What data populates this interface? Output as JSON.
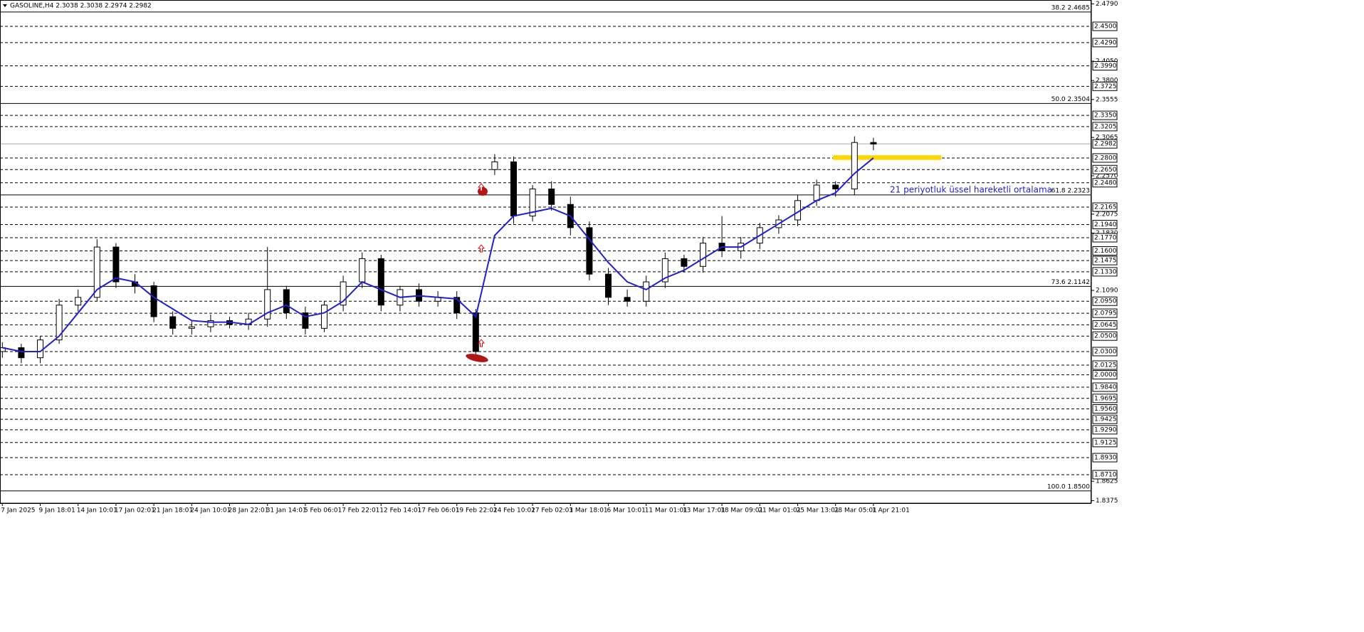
{
  "chart_data": {
    "type": "candlestick",
    "title": "GASOLINE,H4  2.3038 2.3038 2.2974 2.2982",
    "annotation": "21 periyotluk üssel hareketli ortalama",
    "categories": [
      "7 Jan 2025",
      null,
      "9 Jan 18:01",
      null,
      "14 Jan 10:01",
      null,
      "17 Jan 02:01",
      null,
      "21 Jan 18:01",
      null,
      "24 Jan 10:01",
      null,
      "28 Jan 22:01",
      null,
      "31 Jan 14:01",
      null,
      "5 Feb 06:01",
      null,
      "7 Feb 22:01",
      null,
      "12 Feb 14:01",
      null,
      "17 Feb 06:01",
      null,
      "19 Feb 22:01",
      null,
      "24 Feb 10:01",
      null,
      "27 Feb 02:01",
      null,
      "3 Mar 18:01",
      null,
      "6 Mar 10:01",
      null,
      "11 Mar 01:01",
      null,
      "13 Mar 17:01",
      null,
      "18 Mar 09:01",
      null,
      "21 Mar 01:01",
      null,
      "25 Mar 13:01",
      null,
      "28 Mar 05:01",
      null,
      "1 Apr 21:01"
    ],
    "open": [
      2.03,
      2.035,
      2.022,
      2.045,
      2.09,
      2.1,
      2.165,
      2.12,
      2.115,
      2.075,
      2.06,
      2.062,
      2.07,
      2.065,
      2.072,
      2.11,
      2.08,
      2.06,
      2.09,
      2.12,
      2.15,
      2.09,
      2.11,
      2.095,
      2.1,
      2.08,
      2.265,
      2.275,
      2.205,
      2.24,
      2.22,
      2.19,
      2.13,
      2.1,
      2.095,
      2.12,
      2.15,
      2.14,
      2.17,
      2.16,
      2.17,
      2.19,
      2.2,
      2.225,
      2.245,
      2.24,
      2.3
    ],
    "high": [
      2.042,
      2.04,
      2.05,
      2.098,
      2.11,
      2.175,
      2.17,
      2.13,
      2.12,
      2.082,
      2.07,
      2.078,
      2.075,
      2.08,
      2.165,
      2.115,
      2.088,
      2.095,
      2.128,
      2.158,
      2.155,
      2.115,
      2.118,
      2.108,
      2.108,
      2.085,
      2.285,
      2.282,
      2.245,
      2.25,
      2.23,
      2.198,
      2.138,
      2.11,
      2.128,
      2.158,
      2.155,
      2.178,
      2.205,
      2.178,
      2.196,
      2.206,
      2.232,
      2.252,
      2.25,
      2.308,
      2.306
    ],
    "low": [
      2.022,
      2.015,
      2.015,
      2.04,
      2.082,
      2.095,
      2.112,
      2.105,
      2.068,
      2.052,
      2.052,
      2.055,
      2.06,
      2.058,
      2.062,
      2.072,
      2.052,
      2.055,
      2.082,
      2.112,
      2.082,
      2.082,
      2.088,
      2.088,
      2.072,
      2.025,
      2.258,
      2.195,
      2.198,
      2.212,
      2.18,
      2.122,
      2.09,
      2.088,
      2.088,
      2.112,
      2.132,
      2.132,
      2.152,
      2.15,
      2.162,
      2.182,
      2.192,
      2.218,
      2.23,
      2.232,
      2.29
    ],
    "close": [
      2.035,
      2.022,
      2.045,
      2.09,
      2.1,
      2.165,
      2.12,
      2.115,
      2.075,
      2.06,
      2.062,
      2.07,
      2.065,
      2.072,
      2.11,
      2.08,
      2.06,
      2.09,
      2.12,
      2.15,
      2.09,
      2.11,
      2.095,
      2.1,
      2.08,
      2.03,
      2.275,
      2.205,
      2.24,
      2.22,
      2.19,
      2.13,
      2.1,
      2.095,
      2.12,
      2.15,
      2.14,
      2.17,
      2.16,
      2.17,
      2.19,
      2.2,
      2.225,
      2.245,
      2.24,
      2.3,
      2.298
    ],
    "ema": {
      "color": "#1f1fd6",
      "values": [
        2.035,
        2.03,
        2.03,
        2.05,
        2.08,
        2.11,
        2.125,
        2.12,
        2.1,
        2.085,
        2.07,
        2.068,
        2.068,
        2.065,
        2.08,
        2.09,
        2.075,
        2.08,
        2.095,
        2.12,
        2.11,
        2.1,
        2.102,
        2.1,
        2.098,
        2.075,
        2.18,
        2.205,
        2.21,
        2.215,
        2.205,
        2.175,
        2.145,
        2.12,
        2.11,
        2.125,
        2.135,
        2.15,
        2.165,
        2.165,
        2.18,
        2.195,
        2.21,
        2.225,
        2.235,
        2.26,
        2.28
      ]
    },
    "ylim": [
      1.8342,
      2.484
    ],
    "yticks": [
      {
        "value": 2.479,
        "label": "2.4790"
      },
      {
        "value": 2.405,
        "label": "2.4050"
      },
      {
        "value": 2.38,
        "label": "2.3800"
      },
      {
        "value": 2.3555,
        "label": "2.3555"
      },
      {
        "value": 2.3065,
        "label": "2.3065"
      },
      {
        "value": 2.257,
        "label": "2.2570"
      },
      {
        "value": 2.2075,
        "label": "2.2075"
      },
      {
        "value": 2.183,
        "label": "2.1830"
      },
      {
        "value": 2.109,
        "label": "2.1090"
      },
      {
        "value": 1.8625,
        "label": "1.8625"
      },
      {
        "value": 1.8375,
        "label": "1.8375"
      }
    ],
    "level_lines": [
      {
        "value": 2.45,
        "label": "2.4500"
      },
      {
        "value": 2.429,
        "label": "2.4290"
      },
      {
        "value": 2.399,
        "label": "2.3990"
      },
      {
        "value": 2.3725,
        "label": "2.3725"
      },
      {
        "value": 2.335,
        "label": "2.3350"
      },
      {
        "value": 2.3205,
        "label": "2.3205"
      },
      {
        "value": 2.28,
        "label": "2.2800"
      },
      {
        "value": 2.265,
        "label": "2.2650"
      },
      {
        "value": 2.248,
        "label": "2.2480"
      },
      {
        "value": 2.2165,
        "label": "2.2165"
      },
      {
        "value": 2.194,
        "label": "2.1940"
      },
      {
        "value": 2.177,
        "label": "2.1770"
      },
      {
        "value": 2.16,
        "label": "2.1600"
      },
      {
        "value": 2.1475,
        "label": "2.1475"
      },
      {
        "value": 2.133,
        "label": "2.1330"
      },
      {
        "value": 2.095,
        "label": "2.0950"
      },
      {
        "value": 2.0795,
        "label": "2.0795"
      },
      {
        "value": 2.0645,
        "label": "2.0645"
      },
      {
        "value": 2.05,
        "label": "2.0500"
      },
      {
        "value": 2.03,
        "label": "2.0300"
      },
      {
        "value": 2.0125,
        "label": "2.0125"
      },
      {
        "value": 2.0,
        "label": "2.0000"
      },
      {
        "value": 1.984,
        "label": "1.9840"
      },
      {
        "value": 1.9695,
        "label": "1.9695"
      },
      {
        "value": 1.956,
        "label": "1.9560"
      },
      {
        "value": 1.9425,
        "label": "1.9425"
      },
      {
        "value": 1.929,
        "label": "1.9290"
      },
      {
        "value": 1.9125,
        "label": "1.9125"
      },
      {
        "value": 1.893,
        "label": "1.8930"
      },
      {
        "value": 1.871,
        "label": "1.8710"
      }
    ],
    "price_line": {
      "value": 2.2982,
      "label": "2.2982"
    },
    "fib_levels": [
      {
        "value": 2.4685,
        "label": "38.2 2.4685"
      },
      {
        "value": 2.3504,
        "label": "50.0 2.3504"
      },
      {
        "value": 2.2323,
        "label": "61.8 2.2323"
      },
      {
        "value": 2.1142,
        "label": "73.6 2.1142"
      },
      {
        "value": 1.85,
        "label": "100.0 1.8500"
      }
    ],
    "zone": {
      "values": [
        2.2775,
        2.2835
      ],
      "color": "#ffd700"
    }
  }
}
